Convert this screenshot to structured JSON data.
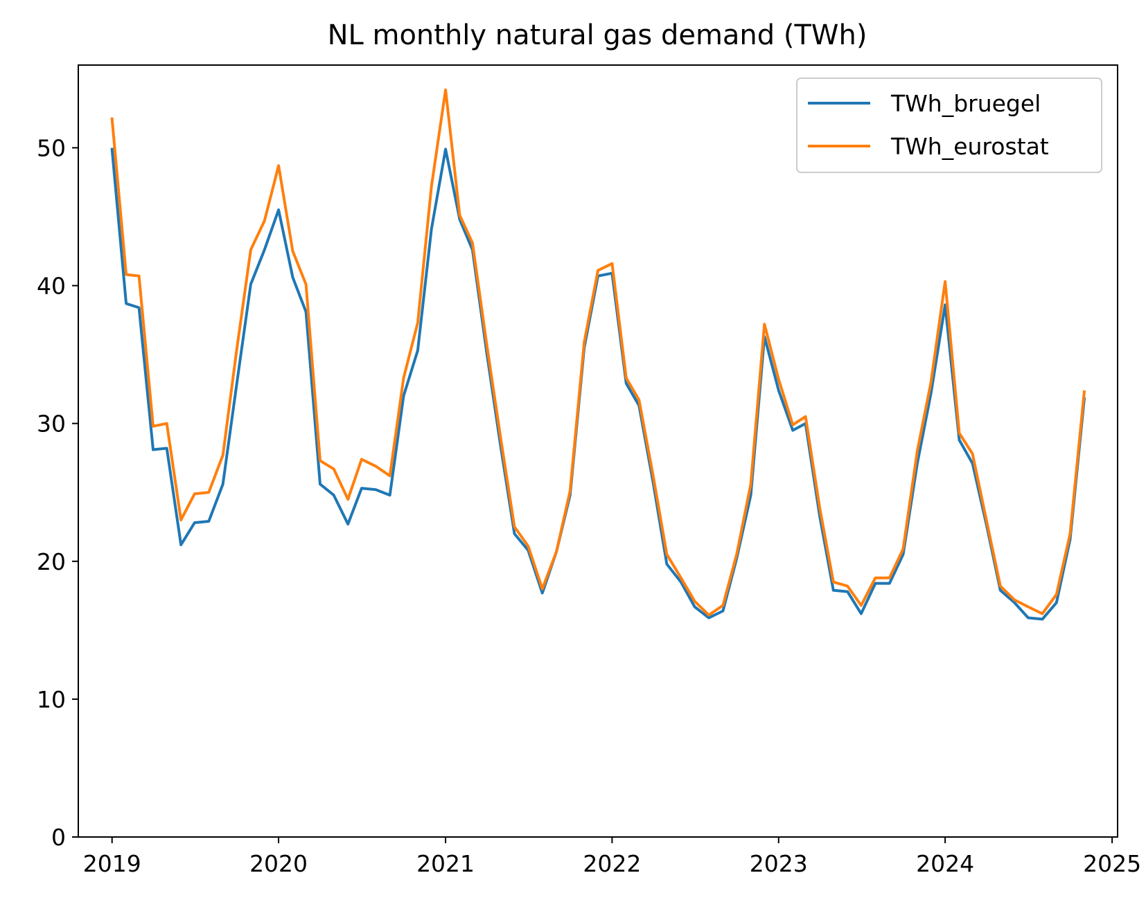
{
  "chart_data": {
    "type": "line",
    "title": "NL monthly natural gas demand (TWh)",
    "xlabel": "",
    "ylabel": "",
    "xlim": [
      "2018-10-19",
      "2025-01-13"
    ],
    "ylim": [
      0,
      56
    ],
    "x_ticks": [
      "2019",
      "2020",
      "2021",
      "2022",
      "2023",
      "2024",
      "2025"
    ],
    "y_ticks": [
      "0",
      "10",
      "20",
      "30",
      "40",
      "50"
    ],
    "grid": false,
    "legend": "top-right",
    "x": [
      "2019-01",
      "2019-02",
      "2019-03",
      "2019-04",
      "2019-05",
      "2019-06",
      "2019-07",
      "2019-08",
      "2019-09",
      "2019-10",
      "2019-11",
      "2019-12",
      "2020-01",
      "2020-02",
      "2020-03",
      "2020-04",
      "2020-05",
      "2020-06",
      "2020-07",
      "2020-08",
      "2020-09",
      "2020-10",
      "2020-11",
      "2020-12",
      "2021-01",
      "2021-02",
      "2021-03",
      "2021-04",
      "2021-05",
      "2021-06",
      "2021-07",
      "2021-08",
      "2021-09",
      "2021-10",
      "2021-11",
      "2021-12",
      "2022-01",
      "2022-02",
      "2022-03",
      "2022-04",
      "2022-05",
      "2022-06",
      "2022-07",
      "2022-08",
      "2022-09",
      "2022-10",
      "2022-11",
      "2022-12",
      "2023-01",
      "2023-02",
      "2023-03",
      "2023-04",
      "2023-05",
      "2023-06",
      "2023-07",
      "2023-08",
      "2023-09",
      "2023-10",
      "2023-11",
      "2023-12",
      "2024-01",
      "2024-02",
      "2024-03",
      "2024-04",
      "2024-05",
      "2024-06",
      "2024-07",
      "2024-08",
      "2024-09",
      "2024-10",
      "2024-11"
    ],
    "series": [
      {
        "name": "TWh_bruegel",
        "color": "#1f77b4",
        "values": [
          49.9,
          38.7,
          38.4,
          28.1,
          28.2,
          21.2,
          22.8,
          22.9,
          25.6,
          32.8,
          40.1,
          42.6,
          45.5,
          40.6,
          38.1,
          25.6,
          24.8,
          22.7,
          25.3,
          25.2,
          24.8,
          32.0,
          35.3,
          44.1,
          49.9,
          44.8,
          42.6,
          35.2,
          28.5,
          22.0,
          20.8,
          17.7,
          20.7,
          24.8,
          35.5,
          40.7,
          40.9,
          32.9,
          31.3,
          25.7,
          19.8,
          18.5,
          16.7,
          15.9,
          16.4,
          20.2,
          24.8,
          36.3,
          32.4,
          29.5,
          30.0,
          23.3,
          17.9,
          17.8,
          16.2,
          18.4,
          18.4,
          20.5,
          27.1,
          32.2,
          38.6,
          28.8,
          27.1,
          22.6,
          17.9,
          17.0,
          15.9,
          15.8,
          17.0,
          21.6,
          31.8
        ]
      },
      {
        "name": "TWh_eurostat",
        "color": "#ff7f0e",
        "values": [
          52.1,
          40.8,
          40.7,
          29.8,
          30.0,
          23.0,
          24.9,
          25.0,
          27.7,
          35.3,
          42.6,
          44.7,
          48.7,
          42.5,
          40.1,
          27.3,
          26.7,
          24.5,
          27.4,
          26.9,
          26.2,
          33.3,
          37.3,
          47.2,
          54.2,
          45.1,
          43.1,
          35.8,
          29.1,
          22.5,
          21.1,
          18.0,
          20.7,
          25.1,
          35.9,
          41.1,
          41.6,
          33.3,
          31.7,
          26.2,
          20.5,
          18.8,
          17.1,
          16.1,
          16.8,
          20.5,
          25.6,
          37.2,
          33.2,
          29.9,
          30.5,
          23.9,
          18.5,
          18.2,
          16.8,
          18.8,
          18.8,
          20.9,
          28.0,
          33.0,
          40.3,
          29.3,
          27.8,
          22.9,
          18.2,
          17.2,
          16.7,
          16.2,
          17.6,
          22.0,
          32.3
        ]
      }
    ]
  }
}
